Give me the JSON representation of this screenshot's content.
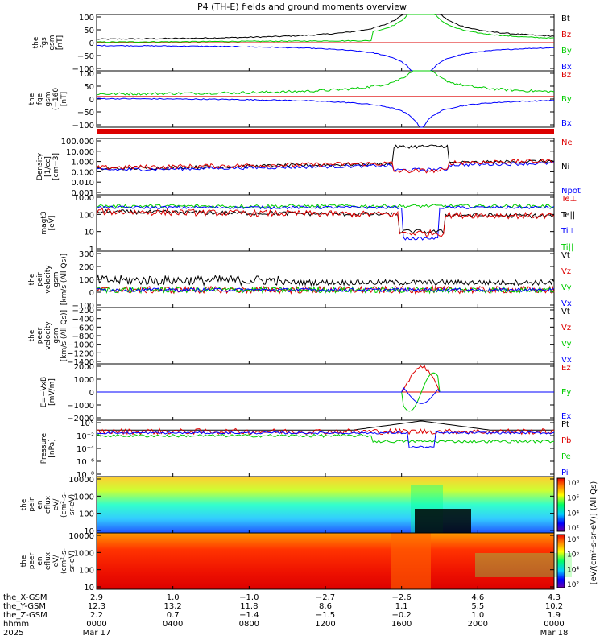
{
  "title": "P4 (TH-E) fields and ground moments overview",
  "colors": {
    "black": "#000000",
    "red": "#dd0000",
    "green": "#00cc00",
    "blue": "#0000ff"
  },
  "chart_data": [
    {
      "type": "line",
      "ylabel": [
        "the",
        "fgs",
        "gsm",
        "[nT]"
      ],
      "ylim": [
        -100,
        100
      ],
      "ticks": [
        "100",
        "50",
        "0",
        "−50",
        "−100"
      ],
      "legend": [
        {
          "label": "Bt",
          "color": "#000000"
        },
        {
          "label": "Bz",
          "color": "#dd0000"
        },
        {
          "label": "By",
          "color": "#00cc00"
        },
        {
          "label": "Bx",
          "color": "#0000ff"
        }
      ]
    },
    {
      "type": "line",
      "ylabel": [
        "the",
        "fge",
        "gsm",
        "(−160",
        "[nT]"
      ],
      "ylim": [
        -120,
        100
      ],
      "ticks": [
        "100",
        "50",
        "0",
        "−50",
        "−100"
      ],
      "legend": [
        {
          "label": "Bz",
          "color": "#dd0000"
        },
        {
          "label": "By",
          "color": "#00cc00"
        },
        {
          "label": "Bx",
          "color": "#0000ff"
        }
      ]
    },
    {
      "type": "line",
      "yscale": "log",
      "ylabel": [
        "Density",
        "[1/cc]",
        "[cm−3]"
      ],
      "ylim": [
        0.001,
        100
      ],
      "ticks": [
        "100.000",
        "10.000",
        "1.000",
        "0.100",
        "0.010",
        "0.001"
      ],
      "legend": [
        {
          "label": "Ne",
          "color": "#dd0000"
        },
        {
          "label": "Ni",
          "color": "#000000"
        },
        {
          "label": "Npot",
          "color": "#0000ff"
        }
      ]
    },
    {
      "type": "line",
      "yscale": "log",
      "ylabel": [
        "magt3",
        "[eV]"
      ],
      "ylim": [
        1,
        10000
      ],
      "ticks": [
        "1000",
        "100",
        "10",
        "1"
      ],
      "legend": [
        {
          "label": "Te⊥",
          "color": "#dd0000"
        },
        {
          "label": "Te||",
          "color": "#000000"
        },
        {
          "label": "Ti⊥",
          "color": "#0000ff"
        },
        {
          "label": "Ti||",
          "color": "#00cc00"
        }
      ]
    },
    {
      "type": "line",
      "ylabel": [
        "the",
        "peir",
        "velocity",
        "gsm",
        "[km/s (All Qs)]"
      ],
      "ylim": [
        -150,
        330
      ],
      "ticks": [
        "300",
        "200",
        "100",
        "0",
        "−100"
      ],
      "legend": [
        {
          "label": "Vt",
          "color": "#000000"
        },
        {
          "label": "Vz",
          "color": "#dd0000"
        },
        {
          "label": "Vy",
          "color": "#00cc00"
        },
        {
          "label": "Vx",
          "color": "#0000ff"
        }
      ]
    },
    {
      "type": "line",
      "ylabel": [
        "the",
        "peer",
        "velocity",
        "gsm",
        "[km/s (All Qs)]"
      ],
      "ylim": [
        -1450,
        -50
      ],
      "ticks": [
        "−200",
        "−400",
        "−600",
        "−800",
        "−1000",
        "−1200",
        "−1400"
      ],
      "legend": [
        {
          "label": "Vt",
          "color": "#000000"
        },
        {
          "label": "Vz",
          "color": "#dd0000"
        },
        {
          "label": "Vy",
          "color": "#00cc00"
        },
        {
          "label": "Vx",
          "color": "#0000ff"
        }
      ]
    },
    {
      "type": "line",
      "ylabel": [
        "E=−VxB",
        "[mV/m]"
      ],
      "ylim": [
        -2200,
        2200
      ],
      "ticks": [
        "2000",
        "1000",
        "0",
        "−1000",
        "−2000"
      ],
      "legend": [
        {
          "label": "Ez",
          "color": "#dd0000"
        },
        {
          "label": "Ey",
          "color": "#00cc00"
        },
        {
          "label": "Ex",
          "color": "#0000ff"
        }
      ]
    },
    {
      "type": "line",
      "yscale": "log",
      "ylabel": [
        "Pressure",
        "[nPa]"
      ],
      "ylim": [
        1e-08,
        1
      ],
      "ticks": [
        "10°",
        "10⁻²",
        "10⁻⁴",
        "10⁻⁶",
        "10⁻⁸"
      ],
      "legend": [
        {
          "label": "Pt",
          "color": "#000000"
        },
        {
          "label": "Pb",
          "color": "#dd0000"
        },
        {
          "label": "Pe",
          "color": "#00cc00"
        },
        {
          "label": "Pi",
          "color": "#0000ff"
        }
      ]
    },
    {
      "type": "heatmap",
      "ylabel": [
        "the",
        "peir",
        "en",
        "eflux",
        "eV/",
        "(cm²-s-",
        "sr-eV)"
      ],
      "ticks": [
        "10000",
        "1000",
        "100",
        "10"
      ],
      "colorbar": [
        "10⁸",
        "10⁶",
        "10⁴",
        "10²"
      ]
    },
    {
      "type": "heatmap",
      "ylabel": [
        "the",
        "peer",
        "en",
        "eflux",
        "eV/",
        "(cm²-s-",
        "sr-eV)"
      ],
      "ticks": [
        "10000",
        "1000",
        "100",
        "10"
      ],
      "colorbar": [
        "10⁸",
        "10⁶",
        "10⁴",
        "10²"
      ]
    }
  ],
  "colorbar_label": "[eV/(cm²-s-sr-eV)] (All Qs)",
  "x_axis": {
    "row_labels": [
      "the_X-GSM",
      "the_Y-GSM",
      "the_Z-GSM",
      "hhmm",
      "2025"
    ],
    "columns": [
      {
        "vals": [
          "2.9",
          "12.3",
          "2.2",
          "0000",
          "Mar 17"
        ]
      },
      {
        "vals": [
          "1.0",
          "13.2",
          "0.7",
          "0400",
          ""
        ]
      },
      {
        "vals": [
          "−1.0",
          "11.8",
          "−1.4",
          "0800",
          ""
        ]
      },
      {
        "vals": [
          "−2.7",
          "8.6",
          "−1.5",
          "1200",
          ""
        ]
      },
      {
        "vals": [
          "−2.6",
          "1.1",
          "−0.2",
          "1600",
          ""
        ]
      },
      {
        "vals": [
          "4.6",
          "5.5",
          "1.0",
          "2000",
          ""
        ]
      },
      {
        "vals": [
          "4.3",
          "10.2",
          "1.9",
          "0000",
          "Mar 18"
        ]
      }
    ]
  }
}
